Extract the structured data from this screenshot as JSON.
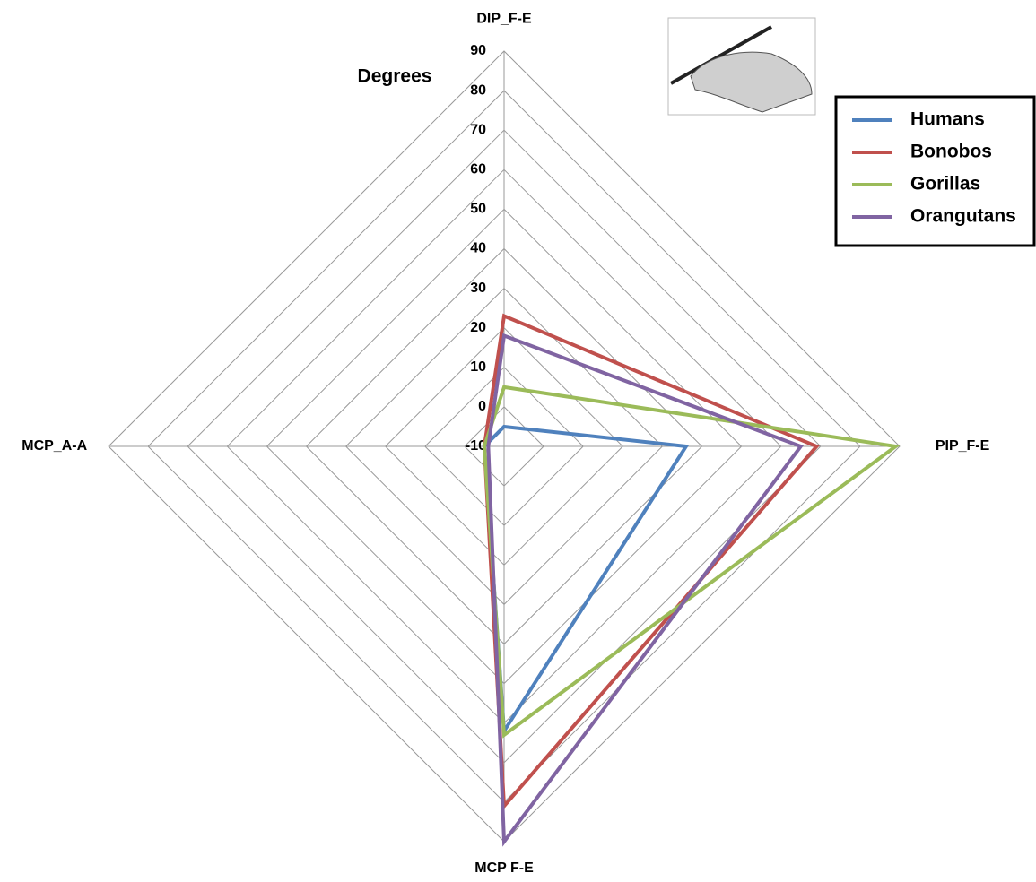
{
  "chart_data": {
    "type": "radar",
    "axis_label": "Degrees",
    "categories": [
      "DIP_F-E",
      "PIP_F-E",
      "MCP F-E",
      "MCP_A-A"
    ],
    "series": [
      {
        "name": "Humans",
        "color": "#4f81bd",
        "values": [
          -5,
          36,
          62,
          -5
        ]
      },
      {
        "name": "Bonobos",
        "color": "#c0504d",
        "values": [
          23,
          69,
          81,
          -5
        ]
      },
      {
        "name": "Gorillas",
        "color": "#9bbb59",
        "values": [
          5,
          89,
          63,
          -5
        ]
      },
      {
        "name": "Orangutans",
        "color": "#8064a2",
        "values": [
          18,
          65,
          90,
          -6
        ]
      }
    ],
    "ylim": [
      -10,
      90
    ],
    "yticks": [
      -10,
      0,
      10,
      20,
      30,
      40,
      50,
      60,
      70,
      80,
      90
    ],
    "grid": true,
    "legend": "top-right"
  }
}
